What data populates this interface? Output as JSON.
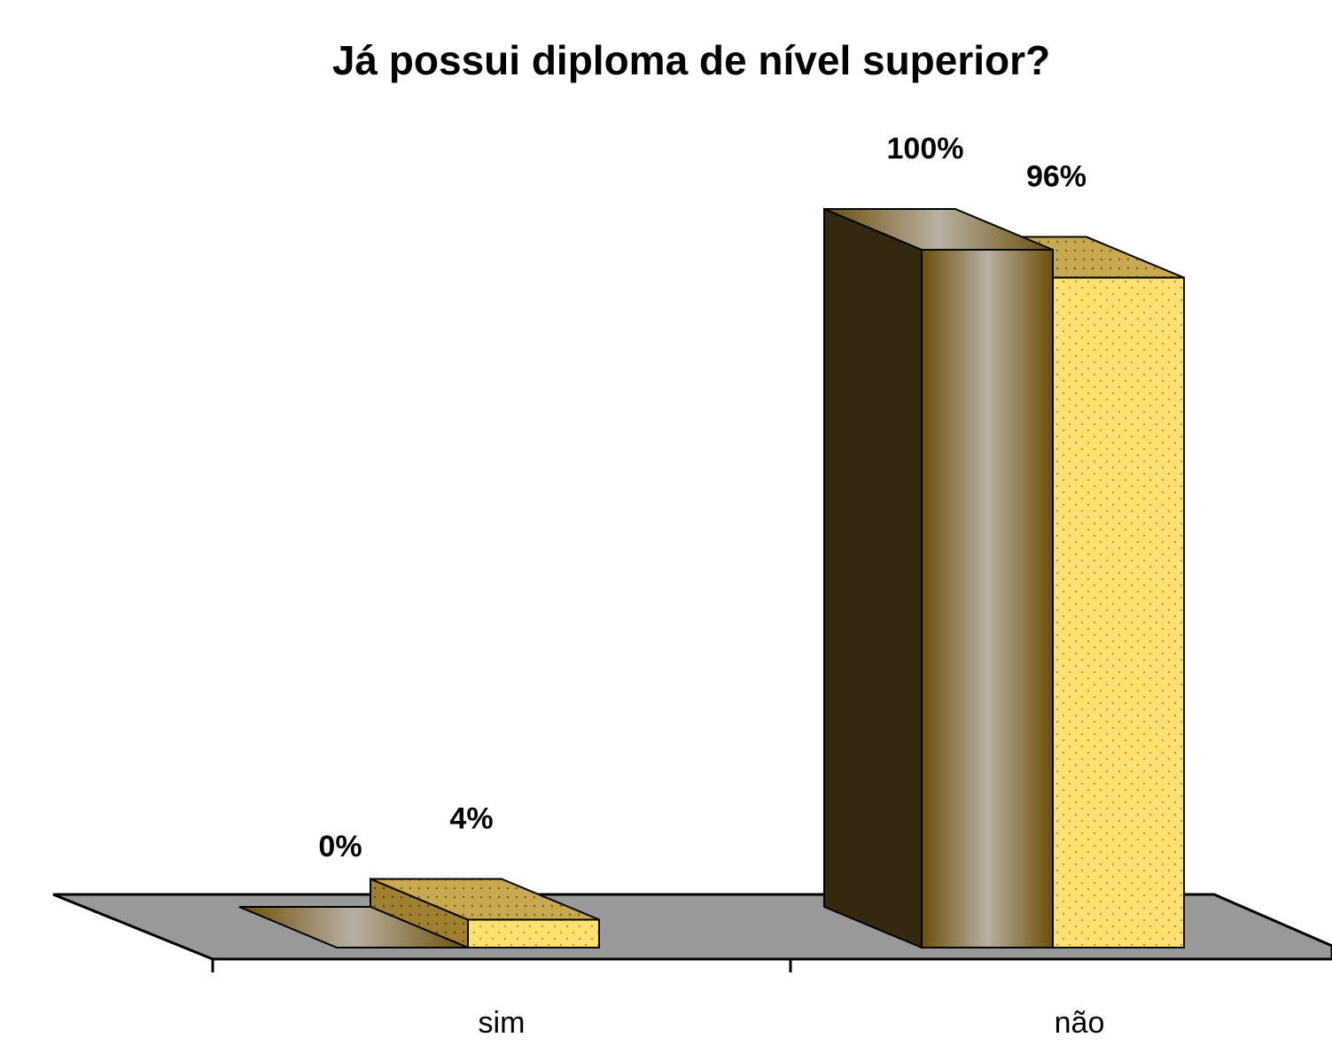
{
  "chart_data": {
    "type": "bar3d",
    "title": "Já possui diploma de nível superior?",
    "categories": [
      "sim",
      "não"
    ],
    "series": [
      {
        "color": "#7a5a10",
        "values": [
          0,
          100
        ],
        "value_labels": [
          "0%",
          "100%"
        ]
      },
      {
        "color": "#ffe070",
        "values": [
          4,
          96
        ],
        "value_labels": [
          "4%",
          "96%"
        ]
      }
    ],
    "ylim": [
      0,
      100
    ]
  }
}
